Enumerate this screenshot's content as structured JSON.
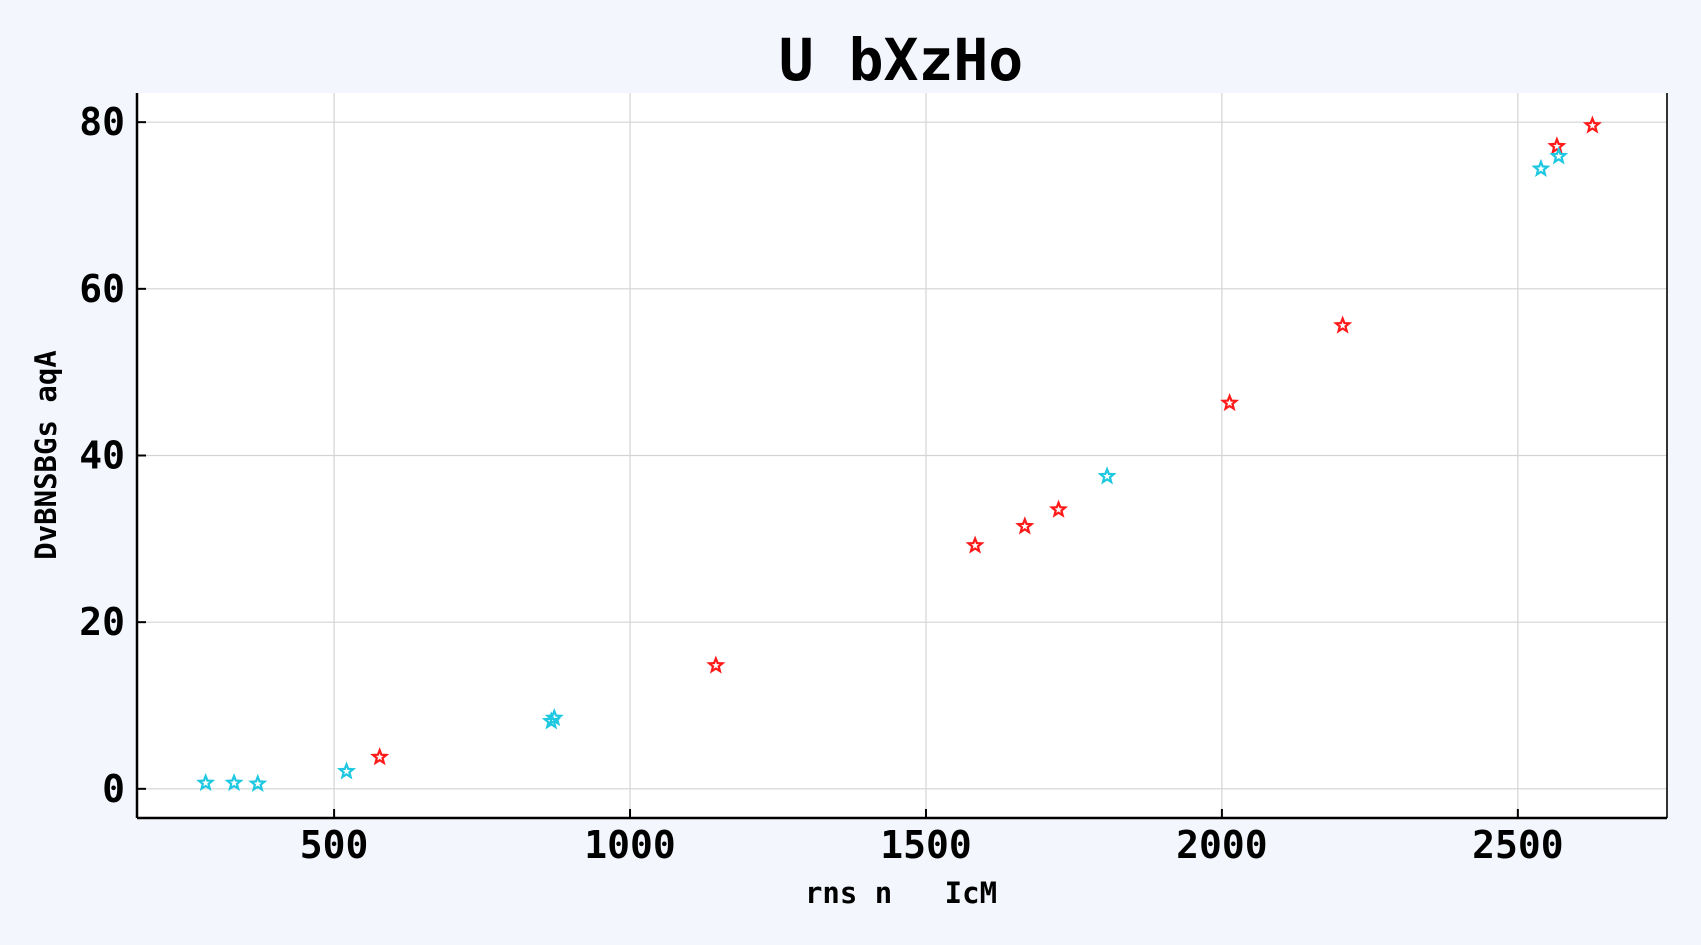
{
  "chart_data": {
    "type": "scatter",
    "title": "U bXzHo",
    "xlabel": "rns n   IcM",
    "ylabel": "DvBNSBGs aqA",
    "xlim": [
      167,
      2752
    ],
    "ylim": [
      -3.5,
      83.5
    ],
    "xticks": [
      500,
      1000,
      1500,
      2000,
      2500
    ],
    "yticks": [
      0,
      20,
      40,
      60,
      80
    ],
    "grid": true,
    "marker": "star",
    "series": [
      {
        "color": "#ff1a1a",
        "points": [
          [
            577,
            3.8
          ],
          [
            1145,
            14.8
          ],
          [
            1583,
            29.2
          ],
          [
            1667,
            31.5
          ],
          [
            1724,
            33.5
          ],
          [
            2013,
            46.3
          ],
          [
            2204,
            55.6
          ],
          [
            2566,
            77.1
          ],
          [
            2626,
            79.6
          ]
        ]
      },
      {
        "color": "#1ec8e0",
        "points": [
          [
            283,
            0.7
          ],
          [
            331,
            0.7
          ],
          [
            371,
            0.6
          ],
          [
            521,
            2.1
          ],
          [
            867,
            8.1
          ],
          [
            872,
            8.5
          ],
          [
            1806,
            37.5
          ],
          [
            2539,
            74.4
          ],
          [
            2569,
            75.9
          ]
        ]
      }
    ]
  }
}
